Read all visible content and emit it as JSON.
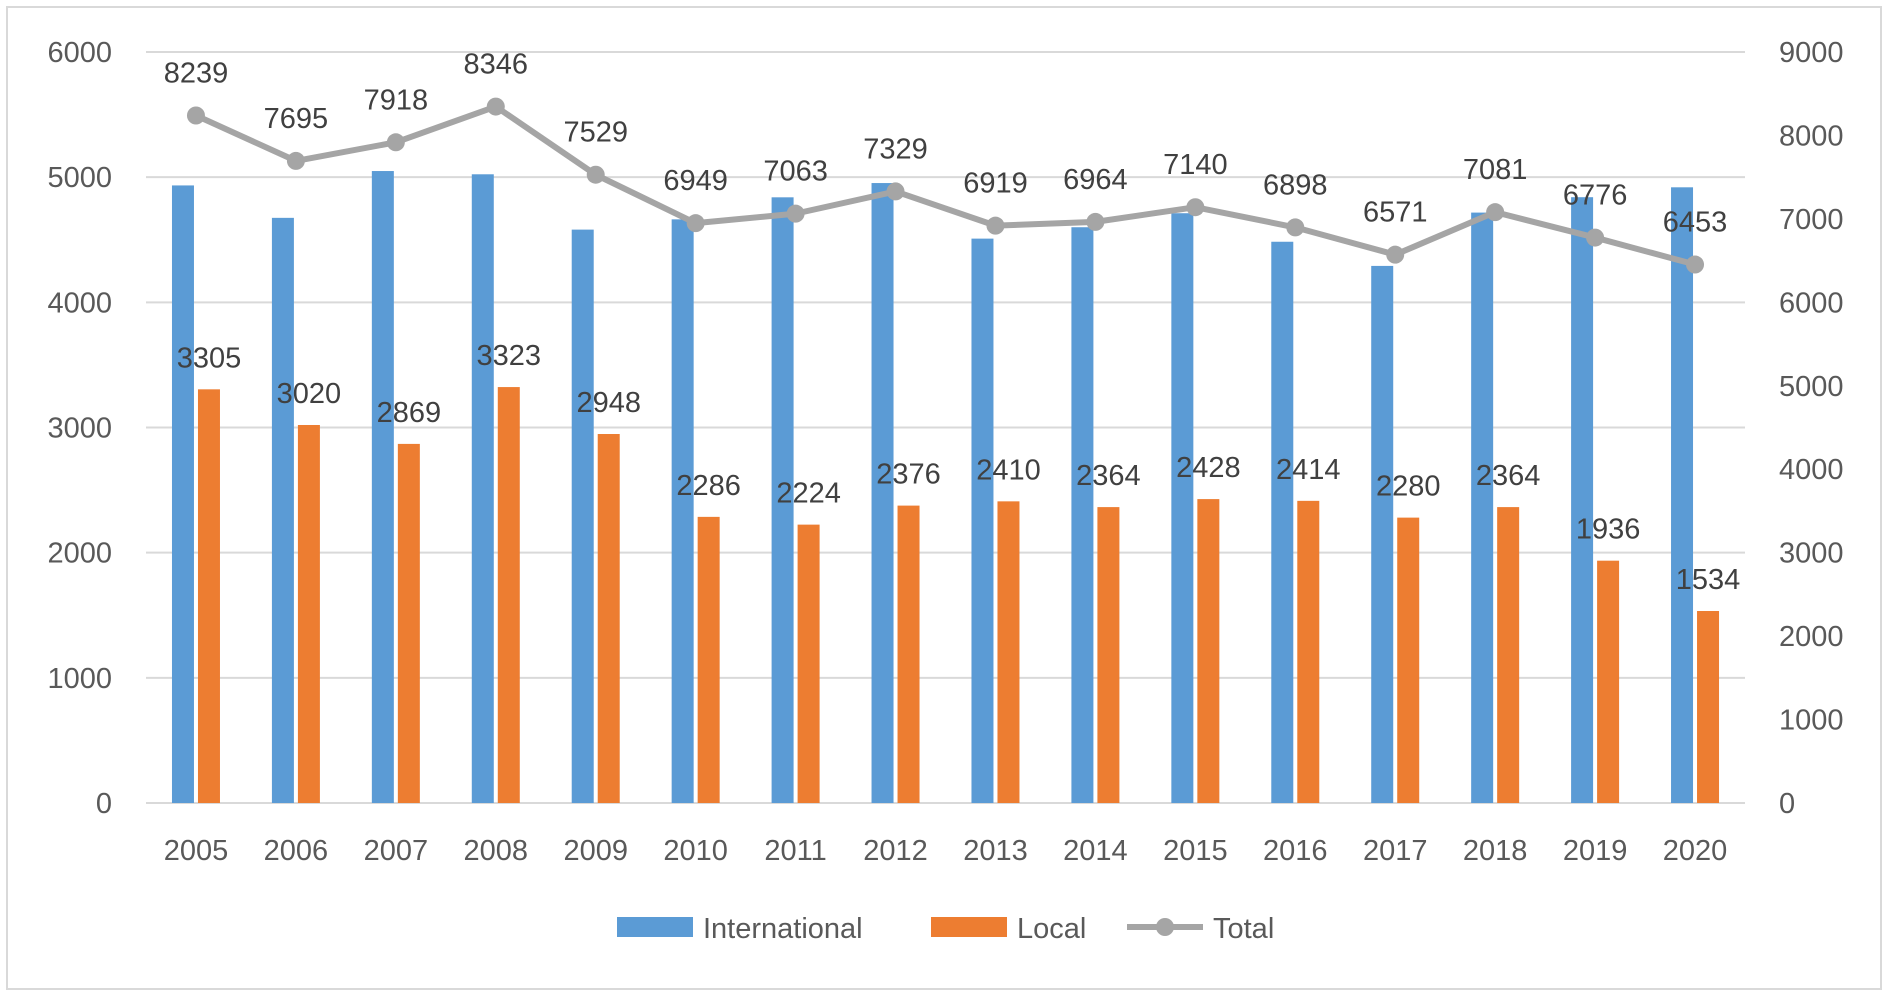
{
  "chart_data": {
    "type": "bar",
    "categories": [
      "2005",
      "2006",
      "2007",
      "2008",
      "2009",
      "2010",
      "2011",
      "2012",
      "2013",
      "2014",
      "2015",
      "2016",
      "2017",
      "2018",
      "2019",
      "2020"
    ],
    "series": [
      {
        "name": "International",
        "type": "bar",
        "axis": "left",
        "color": "#5b9bd5",
        "values": [
          4934,
          4675,
          5049,
          5023,
          4581,
          4663,
          4839,
          4953,
          4509,
          4600,
          4712,
          4484,
          4291,
          4717,
          4840,
          4919
        ]
      },
      {
        "name": "Local",
        "type": "bar",
        "axis": "left",
        "color": "#ed7d31",
        "values": [
          3305,
          3020,
          2869,
          3323,
          2948,
          2286,
          2224,
          2376,
          2410,
          2364,
          2428,
          2414,
          2280,
          2364,
          1936,
          1534
        ],
        "labels": [
          "3305",
          "3020",
          "2869",
          "3323",
          "2948",
          "2286",
          "2224",
          "2376",
          "2410",
          "2364",
          "2428",
          "2414",
          "2280",
          "2364",
          "1936",
          "1534"
        ]
      },
      {
        "name": "Total",
        "type": "line",
        "axis": "right",
        "color": "#a5a5a5",
        "values": [
          8239,
          7695,
          7918,
          8346,
          7529,
          6949,
          7063,
          7329,
          6919,
          6964,
          7140,
          6898,
          6571,
          7081,
          6776,
          6453
        ],
        "labels": [
          "8239",
          "7695",
          "7918",
          "8346",
          "7529",
          "6949",
          "7063",
          "7329",
          "6919",
          "6964",
          "7140",
          "6898",
          "6571",
          "7081",
          "6776",
          "6453"
        ]
      }
    ],
    "left_axis": {
      "min": 0,
      "max": 6000,
      "ticks": [
        "0",
        "1000",
        "2000",
        "3000",
        "4000",
        "5000",
        "6000"
      ]
    },
    "right_axis": {
      "min": 0,
      "max": 9000,
      "ticks": [
        "0",
        "1000",
        "2000",
        "3000",
        "4000",
        "5000",
        "6000",
        "7000",
        "8000",
        "9000"
      ]
    },
    "gridlines": true,
    "legend_position": "bottom",
    "title": "",
    "xlabel": "",
    "ylabel": ""
  }
}
